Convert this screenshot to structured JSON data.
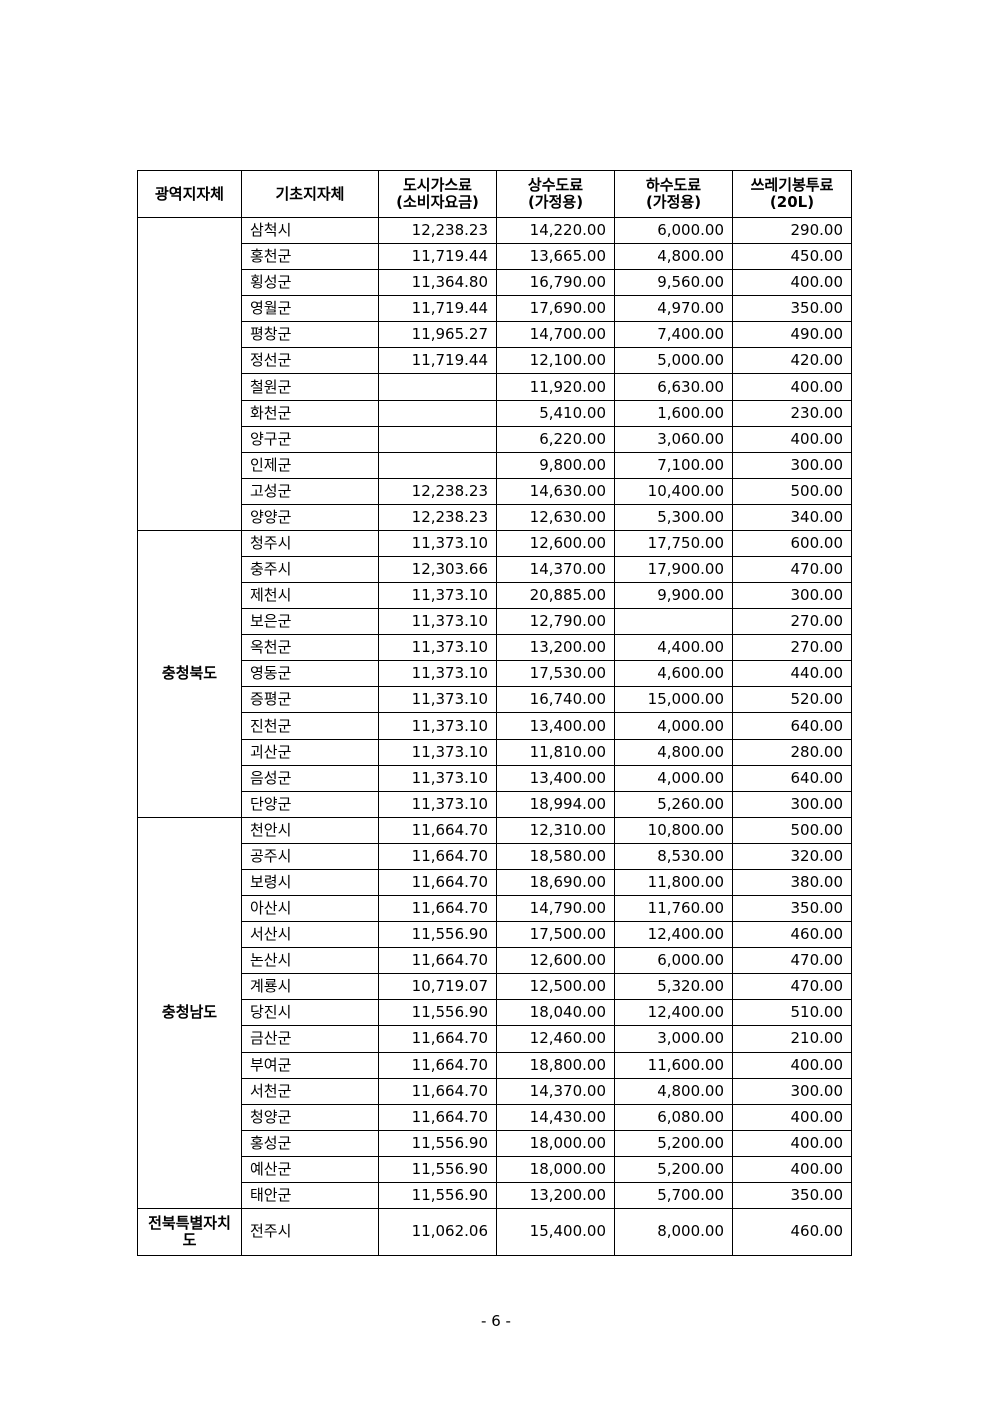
{
  "table": {
    "headers": [
      "광역지자체",
      "기초지자체",
      "도시가스료\n(소비자요금)",
      "상수도료\n(가정용)",
      "하수도료\n(가정용)",
      "쓰레기봉투료\n(20L)"
    ],
    "groups": [
      {
        "region": "",
        "rows": [
          [
            "삼척시",
            "12,238.23",
            "14,220.00",
            "6,000.00",
            "290.00"
          ],
          [
            "홍천군",
            "11,719.44",
            "13,665.00",
            "4,800.00",
            "450.00"
          ],
          [
            "횡성군",
            "11,364.80",
            "16,790.00",
            "9,560.00",
            "400.00"
          ],
          [
            "영월군",
            "11,719.44",
            "17,690.00",
            "4,970.00",
            "350.00"
          ],
          [
            "평창군",
            "11,965.27",
            "14,700.00",
            "7,400.00",
            "490.00"
          ],
          [
            "정선군",
            "11,719.44",
            "12,100.00",
            "5,000.00",
            "420.00"
          ],
          [
            "철원군",
            "",
            "11,920.00",
            "6,630.00",
            "400.00"
          ],
          [
            "화천군",
            "",
            "5,410.00",
            "1,600.00",
            "230.00"
          ],
          [
            "양구군",
            "",
            "6,220.00",
            "3,060.00",
            "400.00"
          ],
          [
            "인제군",
            "",
            "9,800.00",
            "7,100.00",
            "300.00"
          ],
          [
            "고성군",
            "12,238.23",
            "14,630.00",
            "10,400.00",
            "500.00"
          ],
          [
            "양양군",
            "12,238.23",
            "12,630.00",
            "5,300.00",
            "340.00"
          ]
        ]
      },
      {
        "region": "충청북도",
        "rows": [
          [
            "청주시",
            "11,373.10",
            "12,600.00",
            "17,750.00",
            "600.00"
          ],
          [
            "충주시",
            "12,303.66",
            "14,370.00",
            "17,900.00",
            "470.00"
          ],
          [
            "제천시",
            "11,373.10",
            "20,885.00",
            "9,900.00",
            "300.00"
          ],
          [
            "보은군",
            "11,373.10",
            "12,790.00",
            "",
            "270.00"
          ],
          [
            "옥천군",
            "11,373.10",
            "13,200.00",
            "4,400.00",
            "270.00"
          ],
          [
            "영동군",
            "11,373.10",
            "17,530.00",
            "4,600.00",
            "440.00"
          ],
          [
            "증평군",
            "11,373.10",
            "16,740.00",
            "15,000.00",
            "520.00"
          ],
          [
            "진천군",
            "11,373.10",
            "13,400.00",
            "4,000.00",
            "640.00"
          ],
          [
            "괴산군",
            "11,373.10",
            "11,810.00",
            "4,800.00",
            "280.00"
          ],
          [
            "음성군",
            "11,373.10",
            "13,400.00",
            "4,000.00",
            "640.00"
          ],
          [
            "단양군",
            "11,373.10",
            "18,994.00",
            "5,260.00",
            "300.00"
          ]
        ]
      },
      {
        "region": "충청남도",
        "rows": [
          [
            "천안시",
            "11,664.70",
            "12,310.00",
            "10,800.00",
            "500.00"
          ],
          [
            "공주시",
            "11,664.70",
            "18,580.00",
            "8,530.00",
            "320.00"
          ],
          [
            "보령시",
            "11,664.70",
            "18,690.00",
            "11,800.00",
            "380.00"
          ],
          [
            "아산시",
            "11,664.70",
            "14,790.00",
            "11,760.00",
            "350.00"
          ],
          [
            "서산시",
            "11,556.90",
            "17,500.00",
            "12,400.00",
            "460.00"
          ],
          [
            "논산시",
            "11,664.70",
            "12,600.00",
            "6,000.00",
            "470.00"
          ],
          [
            "계룡시",
            "10,719.07",
            "12,500.00",
            "5,320.00",
            "470.00"
          ],
          [
            "당진시",
            "11,556.90",
            "18,040.00",
            "12,400.00",
            "510.00"
          ],
          [
            "금산군",
            "11,664.70",
            "12,460.00",
            "3,000.00",
            "210.00"
          ],
          [
            "부여군",
            "11,664.70",
            "18,800.00",
            "11,600.00",
            "400.00"
          ],
          [
            "서천군",
            "11,664.70",
            "14,370.00",
            "4,800.00",
            "300.00"
          ],
          [
            "청양군",
            "11,664.70",
            "14,430.00",
            "6,080.00",
            "400.00"
          ],
          [
            "홍성군",
            "11,556.90",
            "18,000.00",
            "5,200.00",
            "400.00"
          ],
          [
            "예산군",
            "11,556.90",
            "18,000.00",
            "5,200.00",
            "400.00"
          ],
          [
            "태안군",
            "11,556.90",
            "13,200.00",
            "5,700.00",
            "350.00"
          ]
        ]
      },
      {
        "region": "전북특별자치도",
        "rows": [
          [
            "전주시",
            "11,062.06",
            "15,400.00",
            "8,000.00",
            "460.00"
          ]
        ]
      }
    ]
  },
  "footer": {
    "page_number": "- 6 -"
  }
}
